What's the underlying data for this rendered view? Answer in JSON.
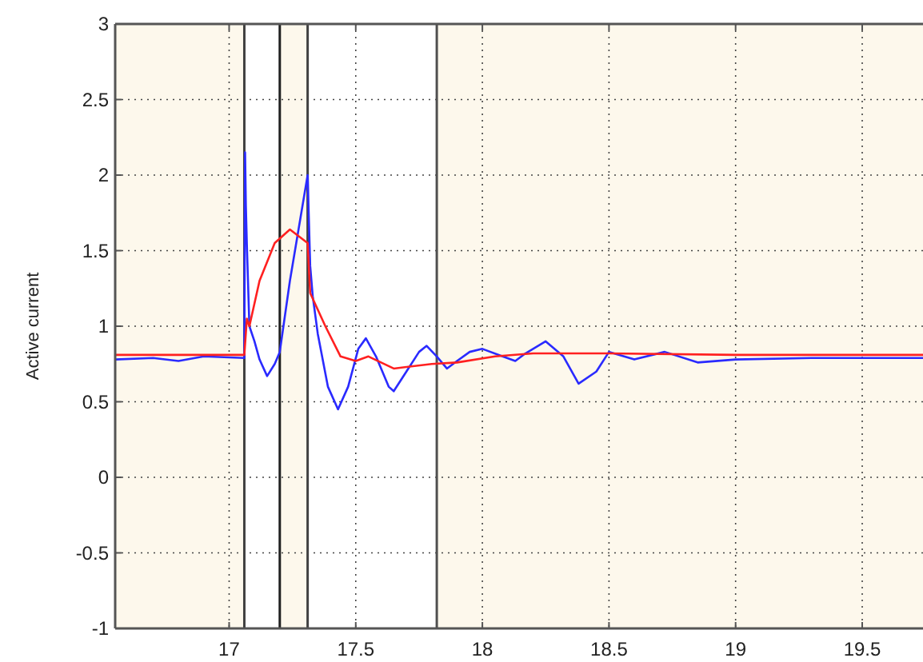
{
  "chart_data": {
    "type": "line",
    "ylabel": "Active current",
    "xlim": [
      16.55,
      19.74
    ],
    "ylim": [
      -1,
      3
    ],
    "xticks": [
      17,
      17.5,
      18,
      18.5,
      19,
      19.5
    ],
    "yticks": [
      -1,
      -0.5,
      0,
      0.5,
      1,
      1.5,
      2,
      2.5,
      3
    ],
    "grid": true,
    "line_style": "solid",
    "marker": "none",
    "bands": [
      {
        "axis": "x",
        "from": 17.06,
        "to": 17.2,
        "color": "#ffffff"
      },
      {
        "axis": "x",
        "from": 17.31,
        "to": 17.82,
        "color": "#ffffff"
      }
    ],
    "ref_lines": [
      {
        "axis": "x",
        "value": 17.06,
        "color": "#404040"
      },
      {
        "axis": "x",
        "value": 17.2,
        "color": "#202020"
      },
      {
        "axis": "x",
        "value": 17.31,
        "color": "#404040"
      },
      {
        "axis": "x",
        "value": 17.82,
        "color": "#505050"
      }
    ],
    "series": [
      {
        "color": "#2a2aff",
        "x": [
          16.55,
          16.7,
          16.8,
          16.9,
          17.06,
          17.063,
          17.066,
          17.07,
          17.08,
          17.1,
          17.12,
          17.15,
          17.18,
          17.2,
          17.24,
          17.28,
          17.31,
          17.32,
          17.33,
          17.35,
          17.39,
          17.43,
          17.47,
          17.51,
          17.54,
          17.58,
          17.63,
          17.65,
          17.7,
          17.75,
          17.78,
          17.82,
          17.86,
          17.9,
          17.95,
          18.0,
          18.08,
          18.13,
          18.17,
          18.25,
          18.32,
          18.38,
          18.45,
          18.5,
          18.6,
          18.72,
          18.85,
          19.0,
          19.3,
          19.74
        ],
        "values": [
          0.78,
          0.79,
          0.77,
          0.8,
          0.79,
          2.15,
          1.8,
          1.54,
          1.0,
          0.9,
          0.78,
          0.67,
          0.75,
          0.83,
          1.3,
          1.7,
          2.0,
          1.4,
          1.2,
          0.95,
          0.6,
          0.45,
          0.6,
          0.85,
          0.92,
          0.8,
          0.6,
          0.57,
          0.7,
          0.83,
          0.87,
          0.8,
          0.72,
          0.77,
          0.83,
          0.85,
          0.8,
          0.77,
          0.82,
          0.9,
          0.8,
          0.62,
          0.7,
          0.83,
          0.78,
          0.83,
          0.76,
          0.78,
          0.79,
          0.79
        ]
      },
      {
        "color": "#ff2020",
        "x": [
          16.55,
          17.06,
          17.07,
          17.08,
          17.12,
          17.18,
          17.24,
          17.31,
          17.32,
          17.38,
          17.44,
          17.5,
          17.55,
          17.65,
          17.8,
          17.9,
          18.05,
          18.2,
          18.5,
          19.0,
          19.74
        ],
        "values": [
          0.81,
          0.81,
          1.05,
          1.0,
          1.3,
          1.55,
          1.64,
          1.55,
          1.22,
          1.0,
          0.8,
          0.77,
          0.8,
          0.72,
          0.75,
          0.76,
          0.8,
          0.82,
          0.82,
          0.81,
          0.81
        ]
      }
    ]
  }
}
